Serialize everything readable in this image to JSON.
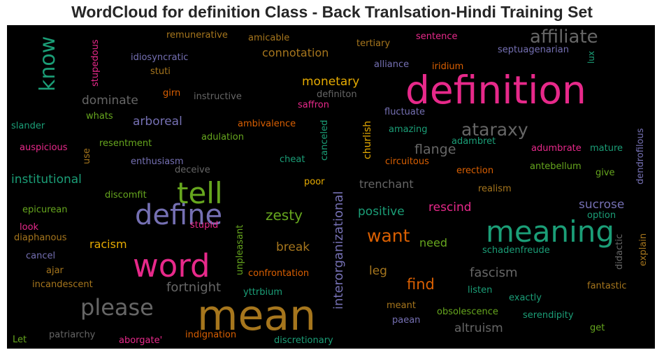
{
  "chart_data": {
    "type": "wordcloud",
    "title": "WordCloud for definition Class - Back Tranlsation-Hindi Training Set",
    "background": "#000000",
    "colormap": "Dark2",
    "words": [
      {
        "text": "mean",
        "color": "#a6761d"
      },
      {
        "text": "definition",
        "color": "#e7298a"
      },
      {
        "text": "word",
        "color": "#e7298a"
      },
      {
        "text": "meaning",
        "color": "#1b9e77"
      },
      {
        "text": "tell",
        "color": "#66a61e"
      },
      {
        "text": "define",
        "color": "#7570b3"
      },
      {
        "text": "please",
        "color": "#666666"
      },
      {
        "text": "affiliate",
        "color": "#666666"
      },
      {
        "text": "know",
        "color": "#1b9e77"
      },
      {
        "text": "ataraxy",
        "color": "#666666"
      },
      {
        "text": "interorganizational",
        "color": "#7570b3"
      },
      {
        "text": "want",
        "color": "#d95f02"
      },
      {
        "text": "fortnight",
        "color": "#666666"
      },
      {
        "text": "flange",
        "color": "#666666"
      },
      {
        "text": "institutional",
        "color": "#1b9e77"
      },
      {
        "text": "zesty",
        "color": "#66a61e"
      },
      {
        "text": "find",
        "color": "#d95f02"
      },
      {
        "text": "fascism",
        "color": "#666666"
      },
      {
        "text": "altruism",
        "color": "#666666"
      },
      {
        "text": "connotation",
        "color": "#a6761d"
      },
      {
        "text": "monetary",
        "color": "#e6ab02"
      },
      {
        "text": "dominate",
        "color": "#666666"
      },
      {
        "text": "arboreal",
        "color": "#7570b3"
      },
      {
        "text": "trenchant",
        "color": "#666666"
      },
      {
        "text": "positive",
        "color": "#1b9e77"
      },
      {
        "text": "rescind",
        "color": "#e7298a"
      },
      {
        "text": "sucrose",
        "color": "#7570b3"
      },
      {
        "text": "break",
        "color": "#a6761d"
      },
      {
        "text": "racism",
        "color": "#e6ab02"
      },
      {
        "text": "need",
        "color": "#66a61e"
      },
      {
        "text": "leg",
        "color": "#a6761d"
      },
      {
        "text": "canceled",
        "color": "#1b9e77"
      },
      {
        "text": "churlish",
        "color": "#e6ab02"
      },
      {
        "text": "unpleasant",
        "color": "#66a61e"
      },
      {
        "text": "stupedous",
        "color": "#e7298a"
      },
      {
        "text": "dendrofilous",
        "color": "#7570b3"
      },
      {
        "text": "remunerative",
        "color": "#a6761d"
      },
      {
        "text": "amicable",
        "color": "#a6761d"
      },
      {
        "text": "sentence",
        "color": "#e7298a"
      },
      {
        "text": "tertiary",
        "color": "#a6761d"
      },
      {
        "text": "septuagenarian",
        "color": "#7570b3"
      },
      {
        "text": "idiosyncratic",
        "color": "#7570b3"
      },
      {
        "text": "stuti",
        "color": "#a6761d"
      },
      {
        "text": "alliance",
        "color": "#7570b3"
      },
      {
        "text": "iridium",
        "color": "#d95f02"
      },
      {
        "text": "lux",
        "color": "#1b9e77"
      },
      {
        "text": "girn",
        "color": "#d95f02"
      },
      {
        "text": "instructive",
        "color": "#666666"
      },
      {
        "text": "definiton",
        "color": "#666666"
      },
      {
        "text": "saffron",
        "color": "#e7298a"
      },
      {
        "text": "fluctuate",
        "color": "#7570b3"
      },
      {
        "text": "whats",
        "color": "#66a61e"
      },
      {
        "text": "slander",
        "color": "#1b9e77"
      },
      {
        "text": "ambivalence",
        "color": "#d95f02"
      },
      {
        "text": "amazing",
        "color": "#1b9e77"
      },
      {
        "text": "adulation",
        "color": "#66a61e"
      },
      {
        "text": "adambret",
        "color": "#1b9e77"
      },
      {
        "text": "auspicious",
        "color": "#e7298a"
      },
      {
        "text": "resentment",
        "color": "#66a61e"
      },
      {
        "text": "use",
        "color": "#a6761d"
      },
      {
        "text": "adumbrate",
        "color": "#e7298a"
      },
      {
        "text": "mature",
        "color": "#1b9e77"
      },
      {
        "text": "enthusiasm",
        "color": "#7570b3"
      },
      {
        "text": "cheat",
        "color": "#1b9e77"
      },
      {
        "text": "circuitous",
        "color": "#d95f02"
      },
      {
        "text": "deceive",
        "color": "#666666"
      },
      {
        "text": "erection",
        "color": "#d95f02"
      },
      {
        "text": "antebellum",
        "color": "#66a61e"
      },
      {
        "text": "give",
        "color": "#66a61e"
      },
      {
        "text": "poor",
        "color": "#e6ab02"
      },
      {
        "text": "discomfit",
        "color": "#66a61e"
      },
      {
        "text": "realism",
        "color": "#a6761d"
      },
      {
        "text": "epicurean",
        "color": "#66a61e"
      },
      {
        "text": "option",
        "color": "#1b9e77"
      },
      {
        "text": "look",
        "color": "#e7298a"
      },
      {
        "text": "stupid",
        "color": "#e7298a"
      },
      {
        "text": "explain",
        "color": "#a6761d"
      },
      {
        "text": "diaphanous",
        "color": "#a6761d"
      },
      {
        "text": "cancel",
        "color": "#7570b3"
      },
      {
        "text": "schadenfreude",
        "color": "#1b9e77"
      },
      {
        "text": "didactic",
        "color": "#666666"
      },
      {
        "text": "ajar",
        "color": "#a6761d"
      },
      {
        "text": "incandescent",
        "color": "#a6761d"
      },
      {
        "text": "confrontation",
        "color": "#d95f02"
      },
      {
        "text": "yttrbium",
        "color": "#1b9e77"
      },
      {
        "text": "listen",
        "color": "#1b9e77"
      },
      {
        "text": "fantastic",
        "color": "#a6761d"
      },
      {
        "text": "exactly",
        "color": "#1b9e77"
      },
      {
        "text": "meant",
        "color": "#a6761d"
      },
      {
        "text": "obsolescence",
        "color": "#66a61e"
      },
      {
        "text": "serendipity",
        "color": "#1b9e77"
      },
      {
        "text": "paean",
        "color": "#7570b3"
      },
      {
        "text": "get",
        "color": "#66a61e"
      },
      {
        "text": "patriarchy",
        "color": "#666666"
      },
      {
        "text": "aborgate'",
        "color": "#e7298a"
      },
      {
        "text": "indignation",
        "color": "#d95f02"
      },
      {
        "text": "discretionary",
        "color": "#1b9e77"
      },
      {
        "text": "Let",
        "color": "#66a61e"
      }
    ]
  }
}
